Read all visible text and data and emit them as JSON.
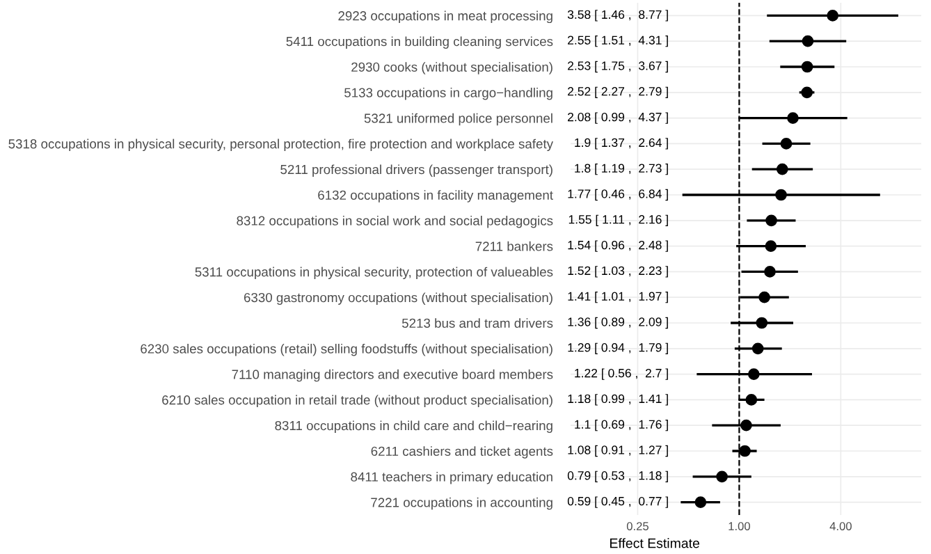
{
  "chart_data": {
    "type": "scatter",
    "orientation": "horizontal",
    "xlabel": "Effect Estimate",
    "categories": [
      "2923 occupations in meat processing",
      "5411 occupations in building cleaning services",
      "2930 cooks (without specialisation)",
      "5133 occupations in cargo−handling",
      "5321 uniformed police personnel",
      "5318 occupations in physical security, personal protection, fire protection and workplace safety",
      "5211 professional drivers (passenger transport)",
      "6132 occupations in facility management",
      "8312 occupations in social work and social pedagogics",
      "7211 bankers",
      "5311 occupations in physical security, protection of valueables",
      "6330 gastronomy occupations (without specialisation)",
      "5213 bus and tram drivers",
      "6230 sales occupations (retail) selling foodstuffs (without specialisation)",
      "7110 managing directors and executive board members",
      "6210 sales occupation in retail trade (without product specialisation)",
      "8311 occupations in child care and child−rearing",
      "6211 cashiers and ticket agents",
      "8411 teachers in primary education",
      "7221 occupations in accounting"
    ],
    "values": [
      3.58,
      2.55,
      2.53,
      2.52,
      2.08,
      1.9,
      1.8,
      1.77,
      1.55,
      1.54,
      1.52,
      1.41,
      1.36,
      1.29,
      1.22,
      1.18,
      1.1,
      1.08,
      0.79,
      0.59
    ],
    "errors": [
      [
        1.46,
        8.77
      ],
      [
        1.51,
        4.31
      ],
      [
        1.75,
        3.67
      ],
      [
        2.27,
        2.79
      ],
      [
        0.99,
        4.37
      ],
      [
        1.37,
        2.64
      ],
      [
        1.19,
        2.73
      ],
      [
        0.46,
        6.84
      ],
      [
        1.11,
        2.16
      ],
      [
        0.96,
        2.48
      ],
      [
        1.03,
        2.23
      ],
      [
        1.01,
        1.97
      ],
      [
        0.89,
        2.09
      ],
      [
        0.94,
        1.79
      ],
      [
        0.56,
        2.7
      ],
      [
        0.99,
        1.41
      ],
      [
        0.69,
        1.76
      ],
      [
        0.91,
        1.27
      ],
      [
        0.53,
        1.18
      ],
      [
        0.45,
        0.77
      ]
    ],
    "annotations": [
      "3.58 [ 1.46 ,  8.77 ]",
      "2.55 [ 1.51 ,  4.31 ]",
      "2.53 [ 1.75 ,  3.67 ]",
      "2.52 [ 2.27 ,  2.79 ]",
      "2.08 [ 0.99 ,  4.37 ]",
      "1.9 [ 1.37 ,  2.64 ]",
      "1.8 [ 1.19 ,  2.73 ]",
      "1.77 [ 0.46 ,  6.84 ]",
      "1.55 [ 1.11 ,  2.16 ]",
      "1.54 [ 0.96 ,  2.48 ]",
      "1.52 [ 1.03 ,  2.23 ]",
      "1.41 [ 1.01 ,  1.97 ]",
      "1.36 [ 0.89 ,  2.09 ]",
      "1.29 [ 0.94 ,  1.79 ]",
      "1.22 [ 0.56 ,  2.7 ]",
      "1.18 [ 0.99 ,  1.41 ]",
      "1.1 [ 0.69 ,  1.76 ]",
      "1.08 [ 0.91 ,  1.27 ]",
      "0.79 [ 0.53 ,  1.18 ]",
      "0.59 [ 0.45 ,  0.77 ]"
    ],
    "color": "#000000",
    "marker": "circle",
    "log": "x",
    "xlim": [
      0.1,
      12
    ],
    "xticks": [
      {
        "value": 0.25,
        "label": "0.25"
      },
      {
        "value": 1,
        "label": "1.00"
      },
      {
        "value": 4,
        "label": "4.00"
      }
    ],
    "ref_lines": [
      {
        "axis": "x",
        "value": 1,
        "line_style": "dashed",
        "color": "#000000"
      }
    ],
    "grid": true,
    "legend": false
  }
}
